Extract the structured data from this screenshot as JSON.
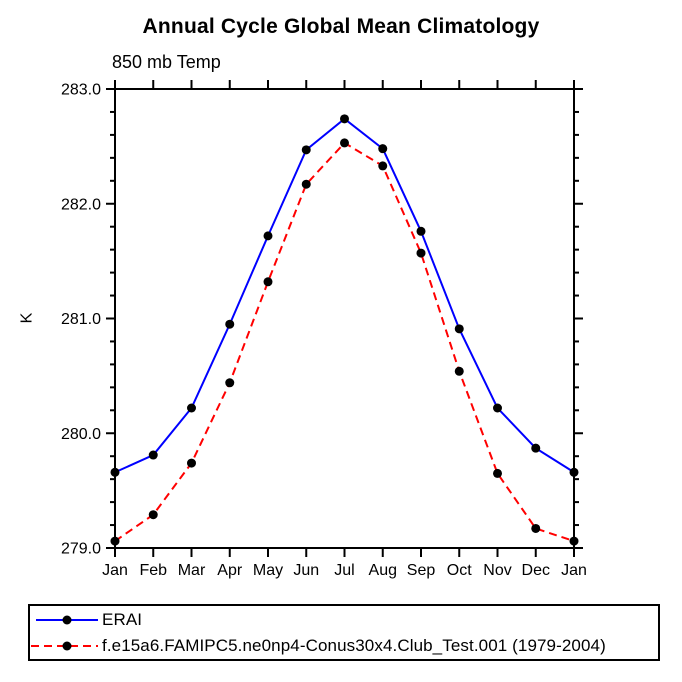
{
  "figure": {
    "title": "Annual Cycle Global Mean Climatology",
    "subtitle": "850 mb Temp"
  },
  "colors": {
    "background": "#ffffff",
    "axis": "#000000",
    "text": "#000000",
    "erai_line": "#0000ff",
    "model_line": "#ff0000",
    "marker": "#000000"
  },
  "chart_data": {
    "type": "line",
    "categories": [
      "Jan",
      "Feb",
      "Mar",
      "Apr",
      "May",
      "Jun",
      "Jul",
      "Aug",
      "Sep",
      "Oct",
      "Nov",
      "Dec",
      "Jan"
    ],
    "xlabel": "",
    "ylabel": "K",
    "ylim": [
      279.0,
      283.0
    ],
    "yticks": {
      "major_values": [
        283.0,
        282.0,
        281.0,
        280.0,
        279.0
      ],
      "major_labels": [
        "283.0",
        "282.0",
        "281.0",
        "280.0",
        "279.0"
      ],
      "minor_step": 0.2
    },
    "grid": false,
    "legend_position": "bottom-left-box",
    "series": [
      {
        "name": "ERAI",
        "color": "#0000ff",
        "line_style": "solid",
        "marker": "filled-circle",
        "marker_color": "#000000",
        "values": [
          279.66,
          279.81,
          280.22,
          280.95,
          281.72,
          282.47,
          282.74,
          282.48,
          281.76,
          280.91,
          280.22,
          279.87,
          279.66
        ]
      },
      {
        "name": "f.e15a6.FAMIPC5.ne0np4-Conus30x4.Club_Test.001 (1979-2004)",
        "color": "#ff0000",
        "line_style": "dashed",
        "marker": "filled-circle",
        "marker_color": "#000000",
        "values": [
          279.06,
          279.29,
          279.74,
          280.44,
          281.32,
          282.17,
          282.53,
          282.33,
          281.57,
          280.54,
          279.65,
          279.17,
          279.06
        ]
      }
    ]
  }
}
